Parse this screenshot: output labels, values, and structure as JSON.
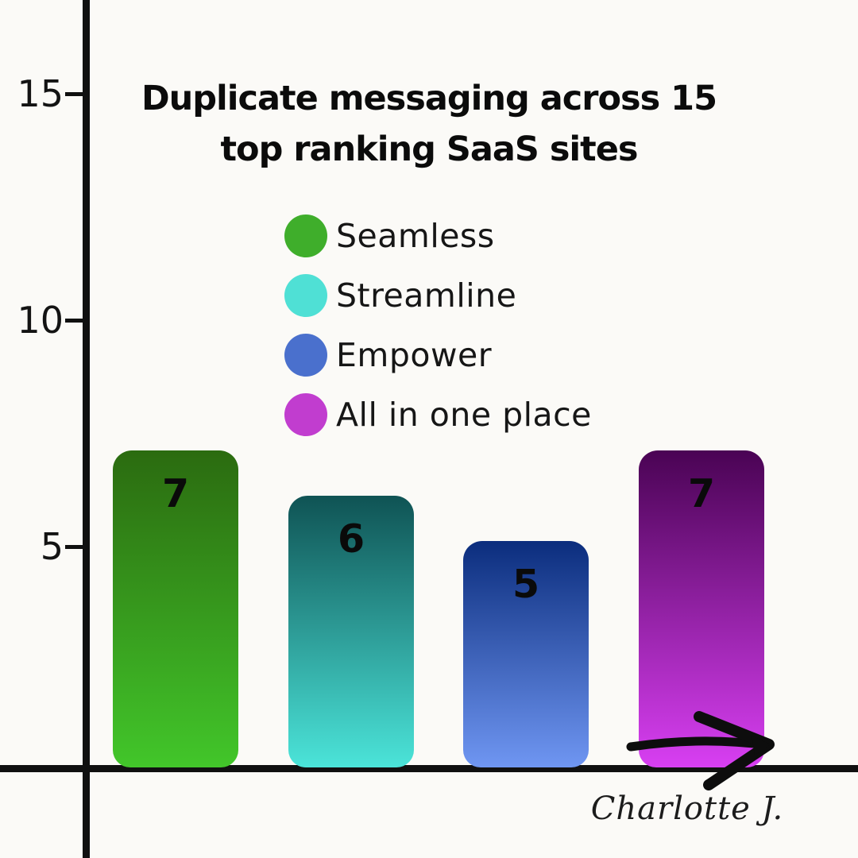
{
  "title": {
    "line1": "Duplicate messaging across 15",
    "line2": "top ranking SaaS sites"
  },
  "signature": "Charlotte J.",
  "colors": {
    "background": "#fbfaf7",
    "axis": "#101010",
    "text": "#0d0d0d"
  },
  "chart_data": {
    "type": "bar",
    "title": "Duplicate messaging across 15 top ranking SaaS sites",
    "categories": [
      "Seamless",
      "Streamline",
      "Empower",
      "All in one place"
    ],
    "values": [
      7,
      6,
      5,
      7
    ],
    "value_labels": [
      "7",
      "6",
      "5",
      "7"
    ],
    "xlabel": "",
    "ylabel": "",
    "yticks": [
      15,
      10,
      5
    ],
    "ylim": [
      0,
      17
    ],
    "grid": false,
    "x_tick_labels_shown": false,
    "legend": {
      "position": "upper-center-inside",
      "entries": [
        {
          "label": "Seamless",
          "color": "#3fae2b"
        },
        {
          "label": "Streamline",
          "color": "#4fe0d5"
        },
        {
          "label": "Empower",
          "color": "#4a70cd"
        },
        {
          "label": "All in one place",
          "color": "#c13dcf"
        }
      ]
    },
    "bar_gradients": [
      {
        "top": "#2b6b10",
        "bottom": "#42c62a"
      },
      {
        "top": "#0f5354",
        "bottom": "#4be4d9"
      },
      {
        "top": "#0b2d7d",
        "bottom": "#6f96f2"
      },
      {
        "top": "#4a0354",
        "bottom": "#d83ff2"
      }
    ],
    "annotations": [
      {
        "type": "arrow",
        "direction": "right",
        "location": "bottom of 'All in one place' bar"
      }
    ]
  }
}
